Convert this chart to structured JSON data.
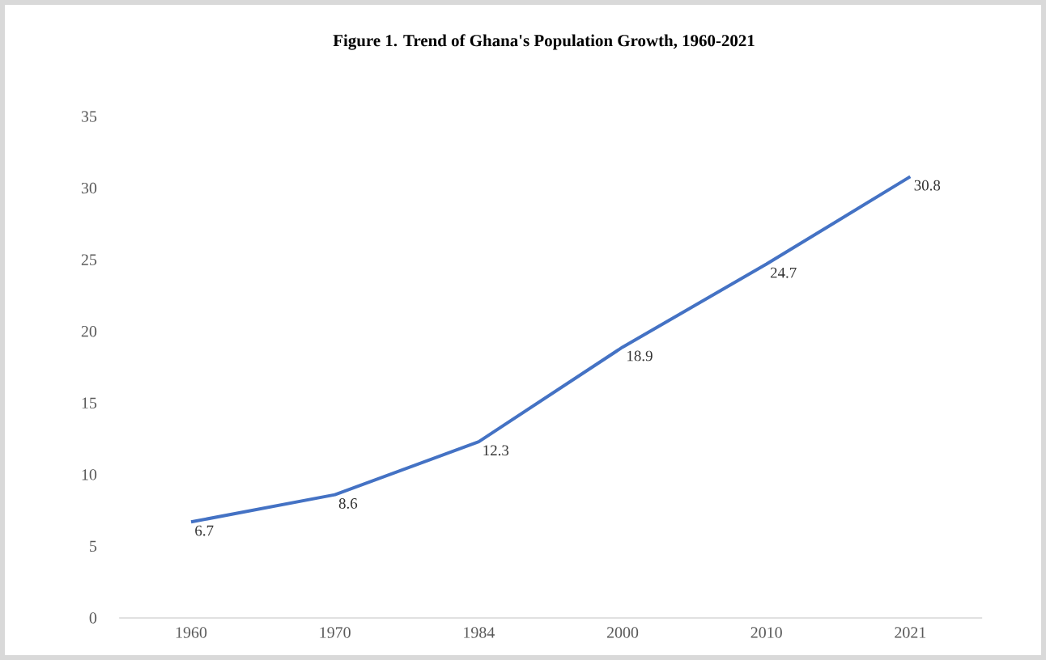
{
  "chart_data": {
    "type": "line",
    "title": "Figure 1. Trend of Ghana's Population Growth, 1960-2021",
    "categories": [
      "1960",
      "1970",
      "1984",
      "2000",
      "2010",
      "2021"
    ],
    "values": [
      6.7,
      8.6,
      12.3,
      18.9,
      24.7,
      30.8
    ],
    "color": "#4472c4",
    "data_labels": true,
    "grid": false,
    "marker": "none",
    "line_style": "solid",
    "ylim": [
      0,
      35
    ],
    "yticks": [
      0,
      5,
      10,
      15,
      20,
      25,
      30,
      35
    ]
  }
}
